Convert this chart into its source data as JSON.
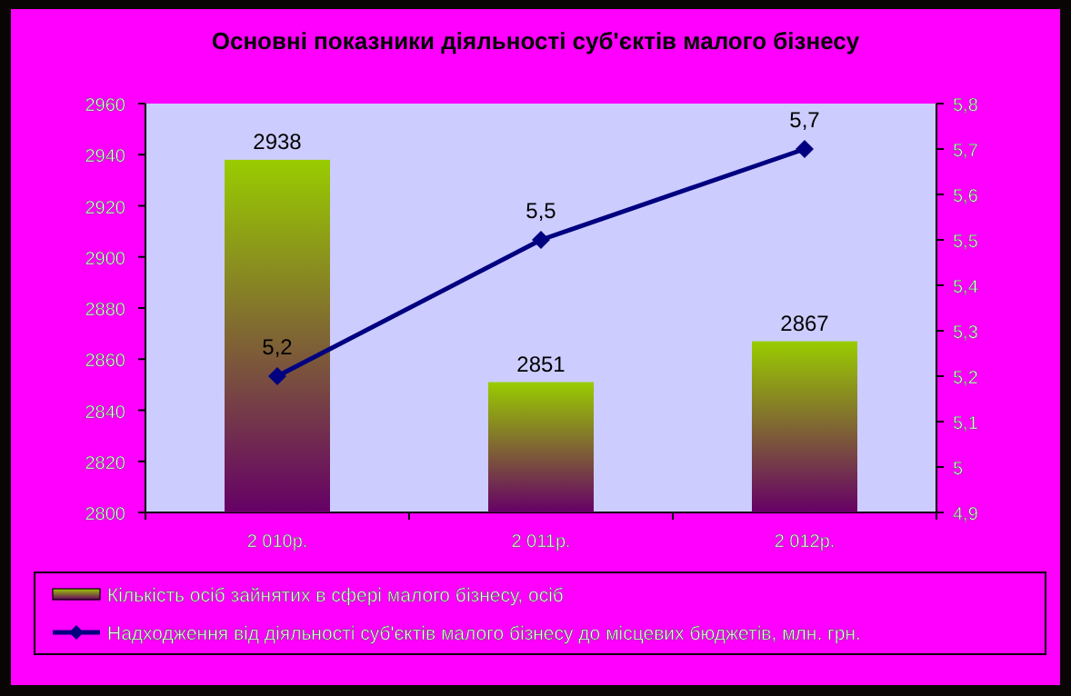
{
  "chart_data": {
    "type": "bar",
    "title": "Основні показники діяльності суб'єктів малого бізнесу",
    "categories": [
      "2 010р.",
      "2 011р.",
      "2 012р."
    ],
    "series": [
      {
        "name": "Кількість осіб зайнятих в сфері малого бізнесу, осіб",
        "color": "#99cc00",
        "values": [
          2938,
          2851,
          2867
        ]
      },
      {
        "name": "Надходження від діяльності суб'єктів малого бізнесу до місцевих бюджетів, млн. грн.",
        "type": "line",
        "axis": "y2",
        "color": "#000080",
        "marker": "diamond",
        "values": [
          5.2,
          5.5,
          5.7
        ],
        "value_labels": [
          "5,2",
          "5,5",
          "5,7"
        ]
      }
    ],
    "ylim": [
      2800,
      2960
    ],
    "yticks": [
      2800,
      2820,
      2840,
      2860,
      2880,
      2900,
      2920,
      2940,
      2960
    ],
    "y2lim": [
      4.9,
      5.8
    ],
    "y2ticks": [
      {
        "value": 4.9,
        "label": "4,9"
      },
      5,
      {
        "value": 5.1,
        "label": "5,1"
      },
      {
        "value": 5.2,
        "label": "5,2"
      },
      {
        "value": 5.3,
        "label": "5,3"
      },
      {
        "value": 5.4,
        "label": "5,4"
      },
      {
        "value": 5.5,
        "label": "5,5"
      },
      {
        "value": 5.6,
        "label": "5,6"
      },
      {
        "value": 5.7,
        "label": "5,7"
      },
      {
        "value": 5.8,
        "label": "5,8"
      }
    ],
    "data_labels": true,
    "legend": "bottom",
    "grid": false
  }
}
